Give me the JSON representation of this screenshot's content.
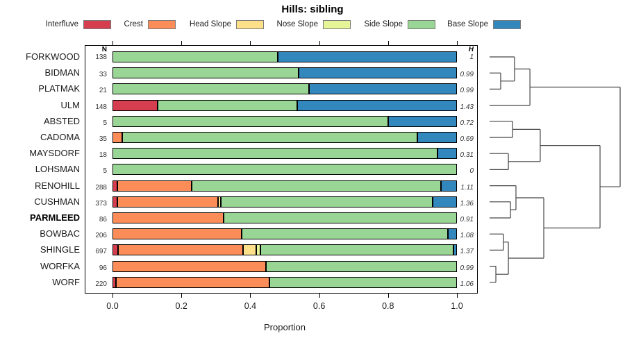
{
  "title": "Hills: sibling",
  "legend": {
    "items": [
      {
        "label": "Interfluve",
        "color": "#d53e4f"
      },
      {
        "label": "Crest",
        "color": "#fc8d59"
      },
      {
        "label": "Head Slope",
        "color": "#fee08b"
      },
      {
        "label": "Nose Slope",
        "color": "#e6f598"
      },
      {
        "label": "Side Slope",
        "color": "#99d594"
      },
      {
        "label": "Base Slope",
        "color": "#3288bd"
      }
    ]
  },
  "columns": {
    "n_header": "N",
    "h_header": "H"
  },
  "x_axis": {
    "label": "Proportion",
    "ticks": [
      {
        "v": 0.0,
        "label": "0.0"
      },
      {
        "v": 0.2,
        "label": "0.2"
      },
      {
        "v": 0.4,
        "label": "0.4"
      },
      {
        "v": 0.6,
        "label": "0.6"
      },
      {
        "v": 0.8,
        "label": "0.8"
      },
      {
        "v": 1.0,
        "label": "1.0"
      }
    ]
  },
  "chart_data": {
    "type": "bar",
    "stacked": true,
    "orientation": "horizontal",
    "title": "Hills: sibling",
    "xlabel": "Proportion",
    "xlim": [
      0,
      1
    ],
    "categories": [
      "Interfluve",
      "Crest",
      "Head Slope",
      "Nose Slope",
      "Side Slope",
      "Base Slope"
    ],
    "colors": {
      "Interfluve": "#d53e4f",
      "Crest": "#fc8d59",
      "Head Slope": "#fee08b",
      "Nose Slope": "#e6f598",
      "Side Slope": "#99d594",
      "Base Slope": "#3288bd"
    },
    "rows": [
      {
        "name": "FORKWOOD",
        "n": 138,
        "h": "1",
        "bold": false,
        "segments": [
          {
            "category": "Side Slope",
            "value": 0.48
          },
          {
            "category": "Base Slope",
            "value": 0.52
          }
        ]
      },
      {
        "name": "BIDMAN",
        "n": 33,
        "h": "0.99",
        "bold": false,
        "segments": [
          {
            "category": "Side Slope",
            "value": 0.54
          },
          {
            "category": "Base Slope",
            "value": 0.46
          }
        ]
      },
      {
        "name": "PLATMAK",
        "n": 21,
        "h": "0.99",
        "bold": false,
        "segments": [
          {
            "category": "Side Slope",
            "value": 0.57
          },
          {
            "category": "Base Slope",
            "value": 0.43
          }
        ]
      },
      {
        "name": "ULM",
        "n": 148,
        "h": "1.43",
        "bold": false,
        "segments": [
          {
            "category": "Interfluve",
            "value": 0.131
          },
          {
            "category": "Side Slope",
            "value": 0.405
          },
          {
            "category": "Base Slope",
            "value": 0.464
          }
        ]
      },
      {
        "name": "ABSTED",
        "n": 5,
        "h": "0.72",
        "bold": false,
        "segments": [
          {
            "category": "Side Slope",
            "value": 0.8
          },
          {
            "category": "Base Slope",
            "value": 0.2
          }
        ]
      },
      {
        "name": "CADOMA",
        "n": 35,
        "h": "0.69",
        "bold": false,
        "segments": [
          {
            "category": "Crest",
            "value": 0.029
          },
          {
            "category": "Side Slope",
            "value": 0.857
          },
          {
            "category": "Base Slope",
            "value": 0.114
          }
        ]
      },
      {
        "name": "MAYSDORF",
        "n": 18,
        "h": "0.31",
        "bold": false,
        "segments": [
          {
            "category": "Side Slope",
            "value": 0.944
          },
          {
            "category": "Base Slope",
            "value": 0.056
          }
        ]
      },
      {
        "name": "LOHSMAN",
        "n": 5,
        "h": "0",
        "bold": false,
        "segments": [
          {
            "category": "Side Slope",
            "value": 1.0
          }
        ]
      },
      {
        "name": "RENOHILL",
        "n": 288,
        "h": "1.11",
        "bold": false,
        "segments": [
          {
            "category": "Interfluve",
            "value": 0.014
          },
          {
            "category": "Crest",
            "value": 0.216
          },
          {
            "category": "Side Slope",
            "value": 0.724
          },
          {
            "category": "Base Slope",
            "value": 0.046
          }
        ]
      },
      {
        "name": "CUSHMAN",
        "n": 373,
        "h": "1.36",
        "bold": false,
        "segments": [
          {
            "category": "Interfluve",
            "value": 0.014
          },
          {
            "category": "Crest",
            "value": 0.292
          },
          {
            "category": "Head Slope",
            "value": 0.008
          },
          {
            "category": "Side Slope",
            "value": 0.615
          },
          {
            "category": "Base Slope",
            "value": 0.071
          }
        ]
      },
      {
        "name": "PARMLEED",
        "n": 86,
        "h": "0.91",
        "bold": true,
        "segments": [
          {
            "category": "Crest",
            "value": 0.322
          },
          {
            "category": "Side Slope",
            "value": 0.678
          }
        ]
      },
      {
        "name": "BOWBAC",
        "n": 206,
        "h": "1.08",
        "bold": false,
        "segments": [
          {
            "category": "Crest",
            "value": 0.374
          },
          {
            "category": "Side Slope",
            "value": 0.6
          },
          {
            "category": "Base Slope",
            "value": 0.026
          }
        ]
      },
      {
        "name": "SHINGLE",
        "n": 697,
        "h": "1.37",
        "bold": false,
        "segments": [
          {
            "category": "Interfluve",
            "value": 0.016
          },
          {
            "category": "Crest",
            "value": 0.363
          },
          {
            "category": "Head Slope",
            "value": 0.038
          },
          {
            "category": "Nose Slope",
            "value": 0.013
          },
          {
            "category": "Side Slope",
            "value": 0.56
          },
          {
            "category": "Base Slope",
            "value": 0.01
          }
        ]
      },
      {
        "name": "WORFKA",
        "n": 96,
        "h": "0.99",
        "bold": false,
        "segments": [
          {
            "category": "Crest",
            "value": 0.445
          },
          {
            "category": "Side Slope",
            "value": 0.555
          }
        ]
      },
      {
        "name": "WORF",
        "n": 220,
        "h": "1.06",
        "bold": false,
        "segments": [
          {
            "category": "Interfluve",
            "value": 0.01
          },
          {
            "category": "Crest",
            "value": 0.446
          },
          {
            "category": "Side Slope",
            "value": 0.544
          }
        ]
      }
    ],
    "dendrogram": {
      "leaves": [
        "FORKWOOD",
        "BIDMAN",
        "PLATMAK",
        "ULM",
        "ABSTED",
        "CADOMA",
        "MAYSDORF",
        "LOHSMAN",
        "RENOHILL",
        "CUSHMAN",
        "PARMLEED",
        "BOWBAC",
        "SHINGLE",
        "WORFKA",
        "WORF"
      ],
      "merges": [
        {
          "id": "m1",
          "a": "L1",
          "b": "L2",
          "h": 0.085
        },
        {
          "id": "m2",
          "a": "L0",
          "b": "m1",
          "h": 0.191
        },
        {
          "id": "m3",
          "a": "m2",
          "b": "L3",
          "h": 0.309
        },
        {
          "id": "m4",
          "a": "L4",
          "b": "L5",
          "h": 0.176
        },
        {
          "id": "m5",
          "a": "L6",
          "b": "L7",
          "h": 0.144
        },
        {
          "id": "m6",
          "a": "m4",
          "b": "m5",
          "h": 0.388
        },
        {
          "id": "m7",
          "a": "L9",
          "b": "L10",
          "h": 0.16
        },
        {
          "id": "m8",
          "a": "L8",
          "b": "m7",
          "h": 0.202
        },
        {
          "id": "m9",
          "a": "L11",
          "b": "L12",
          "h": 0.106
        },
        {
          "id": "m10",
          "a": "L13",
          "b": "L14",
          "h": 0.048
        },
        {
          "id": "m11",
          "a": "m9",
          "b": "m10",
          "h": 0.144
        },
        {
          "id": "m12",
          "a": "m8",
          "b": "m11",
          "h": 0.415
        },
        {
          "id": "m13",
          "a": "m6",
          "b": "m12",
          "h": 0.846
        },
        {
          "id": "m14",
          "a": "m3",
          "b": "m13",
          "h": 1.0
        }
      ]
    }
  }
}
